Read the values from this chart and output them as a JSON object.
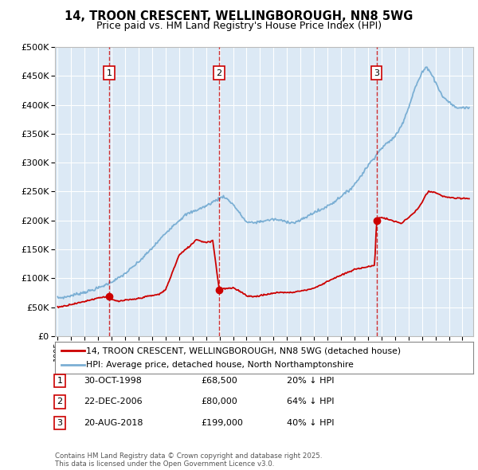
{
  "title": "14, TROON CRESCENT, WELLINGBOROUGH, NN8 5WG",
  "subtitle": "Price paid vs. HM Land Registry's House Price Index (HPI)",
  "legend_line1": "14, TROON CRESCENT, WELLINGBOROUGH, NN8 5WG (detached house)",
  "legend_line2": "HPI: Average price, detached house, North Northamptonshire",
  "transaction_date1": "30-OCT-1998",
  "transaction_price1": "£68,500",
  "transaction_hpi1": "20% ↓ HPI",
  "transaction_date2": "22-DEC-2006",
  "transaction_price2": "£80,000",
  "transaction_hpi2": "64% ↓ HPI",
  "transaction_date3": "20-AUG-2018",
  "transaction_price3": "£199,000",
  "transaction_hpi3": "40% ↓ HPI",
  "footer": "Contains HM Land Registry data © Crown copyright and database right 2025.\nThis data is licensed under the Open Government Licence v3.0.",
  "red_line_color": "#cc0000",
  "blue_line_color": "#7bafd4",
  "dashed_line_color": "#cc0000",
  "plot_bg_color": "#dce9f5",
  "grid_color": "#ffffff",
  "fig_bg_color": "#ffffff",
  "ylim": [
    0,
    500000
  ],
  "xlim_start": 1994.8,
  "xlim_end": 2025.8,
  "transaction_x1": 1998.83,
  "transaction_y1": 68500,
  "transaction_x2": 2006.97,
  "transaction_y2": 80000,
  "transaction_x3": 2018.63,
  "transaction_y3": 199000,
  "hpi_control_x": [
    1995,
    1995.5,
    1996,
    1996.5,
    1997,
    1997.5,
    1998,
    1998.5,
    1999,
    1999.5,
    2000,
    2000.5,
    2001,
    2001.5,
    2002,
    2002.5,
    2003,
    2003.5,
    2004,
    2004.5,
    2005,
    2005.5,
    2006,
    2006.5,
    2007,
    2007.3,
    2007.5,
    2008,
    2008.5,
    2009,
    2009.5,
    2010,
    2010.5,
    2011,
    2011.5,
    2012,
    2012.5,
    2013,
    2013.5,
    2014,
    2014.5,
    2015,
    2015.5,
    2016,
    2016.5,
    2017,
    2017.5,
    2018,
    2018.5,
    2019,
    2019.5,
    2020,
    2020.5,
    2021,
    2021.5,
    2022,
    2022.3,
    2022.5,
    2023,
    2023.5,
    2024,
    2024.5,
    2025,
    2025.5
  ],
  "hpi_control_y": [
    66000,
    67000,
    70000,
    73000,
    76000,
    79000,
    83000,
    88000,
    94000,
    100000,
    108000,
    118000,
    128000,
    140000,
    152000,
    165000,
    178000,
    190000,
    200000,
    210000,
    215000,
    220000,
    225000,
    232000,
    238000,
    242000,
    238000,
    228000,
    212000,
    197000,
    196000,
    198000,
    200000,
    202000,
    200000,
    198000,
    196000,
    200000,
    207000,
    214000,
    218000,
    225000,
    232000,
    242000,
    250000,
    262000,
    278000,
    295000,
    310000,
    325000,
    335000,
    345000,
    365000,
    395000,
    430000,
    455000,
    465000,
    462000,
    440000,
    415000,
    405000,
    395000,
    395000,
    395000
  ],
  "red_control_x": [
    1995,
    1995.5,
    1996,
    1996.5,
    1997,
    1997.5,
    1998,
    1998.5,
    1998.83,
    1999,
    1999.5,
    2000,
    2000.5,
    2001,
    2001.5,
    2002,
    2002.5,
    2003,
    2003.5,
    2004,
    2004.5,
    2005,
    2005.3,
    2005.5,
    2006,
    2006.5,
    2006.97,
    2007.0,
    2007.1,
    2007.5,
    2008,
    2008.5,
    2009,
    2009.5,
    2010,
    2010.5,
    2011,
    2011.5,
    2012,
    2012.5,
    2013,
    2013.5,
    2014,
    2014.5,
    2015,
    2015.5,
    2016,
    2016.5,
    2017,
    2017.5,
    2018,
    2018.5,
    2018.63,
    2018.8,
    2019,
    2019.5,
    2020,
    2020.5,
    2021,
    2021.5,
    2022,
    2022.3,
    2022.5,
    2023,
    2023.5,
    2024,
    2024.5,
    2025,
    2025.5
  ],
  "red_control_y": [
    50000,
    52000,
    55000,
    57000,
    60000,
    63000,
    66000,
    68000,
    68500,
    63000,
    60000,
    62000,
    63000,
    65000,
    68000,
    70000,
    72000,
    80000,
    110000,
    140000,
    150000,
    160000,
    168000,
    165000,
    162000,
    165000,
    80000,
    80000,
    82000,
    82000,
    83000,
    78000,
    70000,
    68000,
    70000,
    72000,
    74000,
    76000,
    75000,
    76000,
    78000,
    80000,
    83000,
    88000,
    95000,
    100000,
    105000,
    110000,
    115000,
    118000,
    120000,
    122000,
    199000,
    205000,
    205000,
    202000,
    198000,
    195000,
    205000,
    215000,
    230000,
    245000,
    250000,
    248000,
    242000,
    240000,
    238000,
    238000,
    238000
  ]
}
